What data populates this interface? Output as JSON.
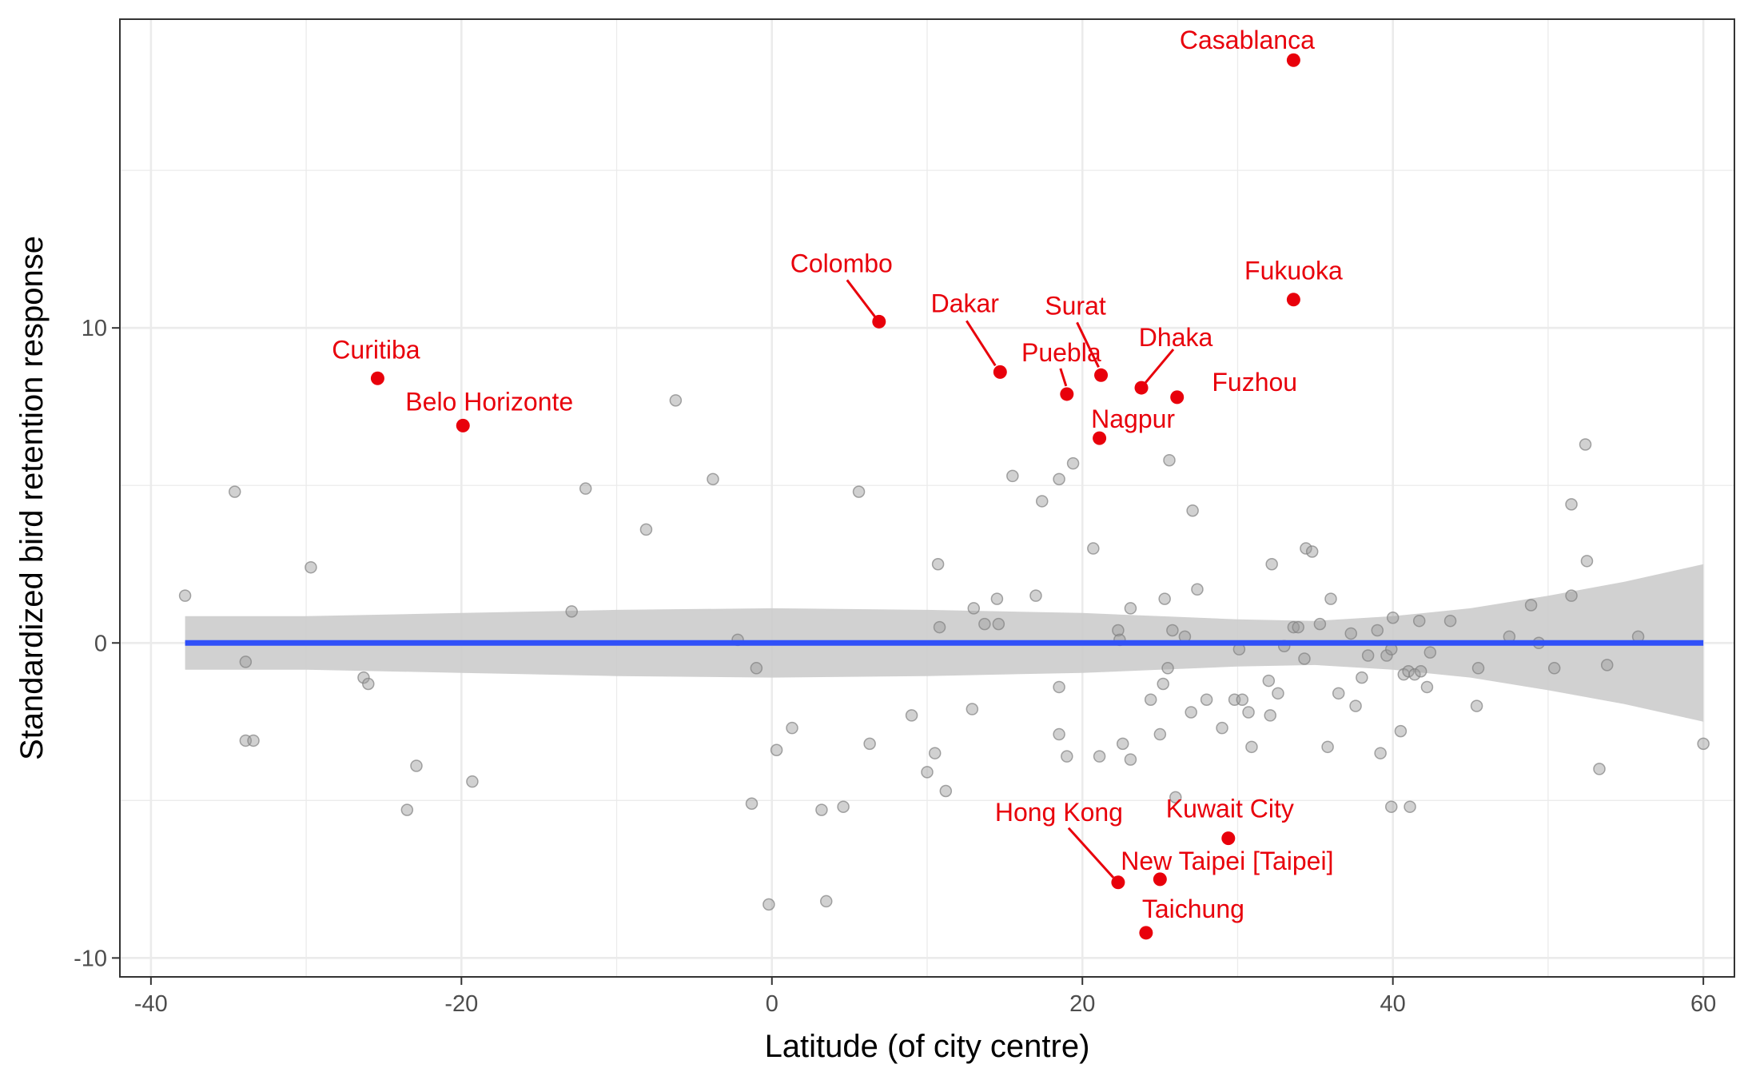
{
  "chart_data": {
    "type": "scatter",
    "title": "",
    "xlabel": "Latitude (of city centre)",
    "ylabel": "Standardized bird retention response",
    "xlim": [
      -42,
      62
    ],
    "ylim": [
      -10.6,
      19.8
    ],
    "x_ticks": [
      -40,
      -20,
      0,
      20,
      40,
      60
    ],
    "y_ticks": [
      -10,
      0,
      10
    ],
    "x_tick_labels": [
      "-40",
      "-20",
      "0",
      "20",
      "40",
      "60"
    ],
    "y_tick_labels": [
      "-10",
      "0",
      "10"
    ],
    "grid": true,
    "legend": "none",
    "colors": {
      "points": "#999999",
      "highlight": "#e8000b",
      "trend_line": "#3050f8",
      "confidence_band": "#cccccc",
      "grid": "#ebebeb",
      "panel_border": "#333333"
    },
    "trend_line": {
      "x": [
        -37.8,
        60
      ],
      "y": [
        0,
        0
      ]
    },
    "confidence_band": {
      "x": [
        -37.8,
        -30,
        -20,
        -10,
        0,
        10,
        20,
        25,
        30,
        35,
        40,
        45,
        50,
        55,
        60
      ],
      "upper": [
        0.85,
        0.85,
        0.95,
        1.05,
        1.1,
        1.05,
        0.95,
        0.85,
        0.75,
        0.7,
        0.85,
        1.1,
        1.5,
        1.95,
        2.5
      ],
      "lower": [
        -0.85,
        -0.85,
        -0.95,
        -1.05,
        -1.1,
        -1.05,
        -0.95,
        -0.85,
        -0.75,
        -0.7,
        -0.85,
        -1.1,
        -1.5,
        -1.95,
        -2.5
      ]
    },
    "series": [
      {
        "values": [
          [
            -37.8,
            1.5
          ],
          [
            -34.6,
            4.8
          ],
          [
            -33.9,
            -0.6
          ],
          [
            -33.9,
            -3.1
          ],
          [
            -33.4,
            -3.1
          ],
          [
            -29.7,
            2.4
          ],
          [
            -26.3,
            -1.1
          ],
          [
            -26.0,
            -1.3
          ],
          [
            -23.5,
            -5.3
          ],
          [
            -22.9,
            -3.9
          ],
          [
            -19.3,
            -4.4
          ],
          [
            -12.9,
            1.0
          ],
          [
            -12.0,
            4.9
          ],
          [
            -8.1,
            3.6
          ],
          [
            -6.2,
            7.7
          ],
          [
            -3.8,
            5.2
          ],
          [
            -2.2,
            0.1
          ],
          [
            -1.3,
            -5.1
          ],
          [
            -1.0,
            -0.8
          ],
          [
            -0.2,
            -8.3
          ],
          [
            0.3,
            -3.4
          ],
          [
            1.3,
            -2.7
          ],
          [
            3.2,
            -5.3
          ],
          [
            3.5,
            -8.2
          ],
          [
            4.6,
            -5.2
          ],
          [
            5.6,
            4.8
          ],
          [
            6.3,
            -3.2
          ],
          [
            9.0,
            -2.3
          ],
          [
            10.0,
            -4.1
          ],
          [
            10.5,
            -3.5
          ],
          [
            10.7,
            2.5
          ],
          [
            10.8,
            0.5
          ],
          [
            11.2,
            -4.7
          ],
          [
            12.9,
            -2.1
          ],
          [
            13.0,
            1.1
          ],
          [
            13.7,
            0.6
          ],
          [
            14.5,
            1.4
          ],
          [
            14.6,
            0.6
          ],
          [
            15.5,
            5.3
          ],
          [
            17.0,
            1.5
          ],
          [
            17.4,
            4.5
          ],
          [
            18.5,
            5.2
          ],
          [
            18.5,
            -1.4
          ],
          [
            18.5,
            -2.9
          ],
          [
            19.0,
            -3.6
          ],
          [
            19.4,
            5.7
          ],
          [
            20.7,
            3.0
          ],
          [
            21.1,
            -3.6
          ],
          [
            22.3,
            0.4
          ],
          [
            22.4,
            0.1
          ],
          [
            22.6,
            -3.2
          ],
          [
            23.1,
            -3.7
          ],
          [
            23.1,
            1.1
          ],
          [
            24.4,
            -1.8
          ],
          [
            25.0,
            -2.9
          ],
          [
            25.2,
            -1.3
          ],
          [
            25.3,
            1.4
          ],
          [
            25.5,
            -0.8
          ],
          [
            25.6,
            5.8
          ],
          [
            25.8,
            0.4
          ],
          [
            26.0,
            -4.9
          ],
          [
            26.6,
            0.2
          ],
          [
            27.0,
            -2.2
          ],
          [
            27.1,
            4.2
          ],
          [
            27.4,
            1.7
          ],
          [
            28.0,
            -1.8
          ],
          [
            29.0,
            -2.7
          ],
          [
            29.8,
            -1.8
          ],
          [
            30.1,
            -0.2
          ],
          [
            30.3,
            -1.8
          ],
          [
            30.7,
            -2.2
          ],
          [
            30.9,
            -3.3
          ],
          [
            32.0,
            -1.2
          ],
          [
            32.1,
            -2.3
          ],
          [
            32.2,
            2.5
          ],
          [
            32.6,
            -1.6
          ],
          [
            33.0,
            -0.1
          ],
          [
            33.6,
            0.5
          ],
          [
            33.9,
            0.5
          ],
          [
            34.3,
            -0.5
          ],
          [
            34.4,
            3.0
          ],
          [
            34.8,
            2.9
          ],
          [
            35.3,
            0.6
          ],
          [
            35.8,
            -3.3
          ],
          [
            36.0,
            1.4
          ],
          [
            36.5,
            -1.6
          ],
          [
            37.3,
            0.3
          ],
          [
            37.6,
            -2.0
          ],
          [
            38.0,
            -1.1
          ],
          [
            38.4,
            -0.4
          ],
          [
            39.0,
            0.4
          ],
          [
            39.2,
            -3.5
          ],
          [
            39.6,
            -0.4
          ],
          [
            39.9,
            -5.2
          ],
          [
            39.9,
            -0.2
          ],
          [
            40.0,
            0.8
          ],
          [
            40.5,
            -2.8
          ],
          [
            40.7,
            -1.0
          ],
          [
            41.0,
            -0.9
          ],
          [
            41.1,
            -5.2
          ],
          [
            41.4,
            -1.0
          ],
          [
            41.7,
            0.7
          ],
          [
            41.8,
            -0.9
          ],
          [
            42.2,
            -1.4
          ],
          [
            42.4,
            -0.3
          ],
          [
            43.7,
            0.7
          ],
          [
            45.4,
            -2.0
          ],
          [
            45.5,
            -0.8
          ],
          [
            47.5,
            0.2
          ],
          [
            48.9,
            1.2
          ],
          [
            49.4,
            0.0
          ],
          [
            50.4,
            -0.8
          ],
          [
            51.5,
            4.4
          ],
          [
            51.5,
            1.5
          ],
          [
            52.4,
            6.3
          ],
          [
            52.5,
            2.6
          ],
          [
            53.3,
            -4.0
          ],
          [
            53.8,
            -0.7
          ],
          [
            55.8,
            0.2
          ],
          [
            60.0,
            -3.2
          ]
        ]
      },
      {
        "values": [
          [
            33.6,
            18.5
          ],
          [
            33.6,
            10.9
          ],
          [
            6.9,
            10.2
          ],
          [
            -25.4,
            8.4
          ],
          [
            -19.9,
            6.9
          ],
          [
            14.7,
            8.6
          ],
          [
            21.2,
            8.5
          ],
          [
            19.0,
            7.9
          ],
          [
            23.8,
            8.1
          ],
          [
            26.1,
            7.8
          ],
          [
            21.1,
            6.5
          ],
          [
            29.4,
            -6.2
          ],
          [
            22.3,
            -7.6
          ],
          [
            25.0,
            -7.5
          ],
          [
            24.1,
            -9.2
          ]
        ]
      }
    ],
    "annotations": [
      {
        "text": "Casablanca",
        "x": 33.6,
        "y": 18.5
      },
      {
        "text": "Fukuoka",
        "x": 33.6,
        "y": 10.9
      },
      {
        "text": "Colombo",
        "x": 6.9,
        "y": 10.2
      },
      {
        "text": "Curitiba",
        "x": -25.4,
        "y": 8.4
      },
      {
        "text": "Belo Horizonte",
        "x": -19.9,
        "y": 6.9
      },
      {
        "text": "Dakar",
        "x": 14.7,
        "y": 8.6
      },
      {
        "text": "Surat",
        "x": 21.2,
        "y": 8.5
      },
      {
        "text": "Puebla",
        "x": 19.0,
        "y": 7.9
      },
      {
        "text": "Dhaka",
        "x": 23.8,
        "y": 8.1
      },
      {
        "text": "Fuzhou",
        "x": 26.1,
        "y": 7.8
      },
      {
        "text": "Nagpur",
        "x": 21.1,
        "y": 6.5
      },
      {
        "text": "Kuwait City",
        "x": 29.4,
        "y": -6.2
      },
      {
        "text": "Hong Kong",
        "x": 22.3,
        "y": -7.6
      },
      {
        "text": "New Taipei [Taipei]",
        "x": 25.0,
        "y": -7.5
      },
      {
        "text": "Taichung",
        "x": 24.1,
        "y": -9.2
      }
    ]
  }
}
